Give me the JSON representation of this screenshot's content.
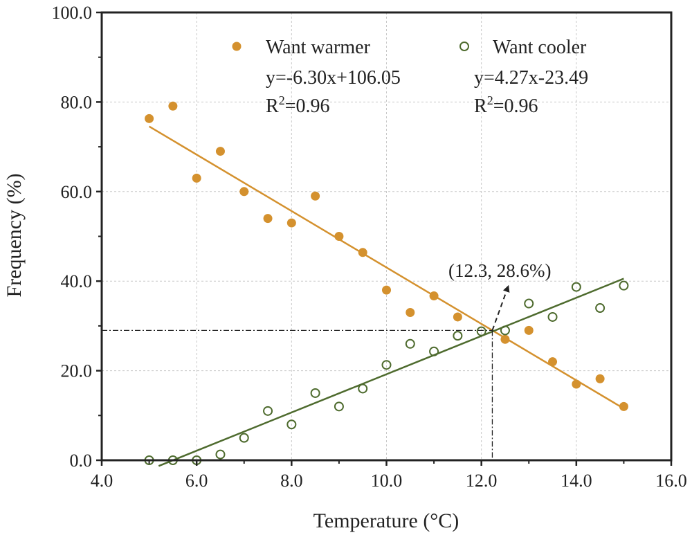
{
  "chart_data": {
    "type": "scatter",
    "xlabel": "Temperature (°C)",
    "ylabel": "Frequency (%)",
    "xlim": [
      4.0,
      16.0
    ],
    "ylim": [
      0.0,
      100.0
    ],
    "xticks": [
      4.0,
      6.0,
      8.0,
      10.0,
      12.0,
      14.0,
      16.0
    ],
    "yticks": [
      0.0,
      20.0,
      40.0,
      60.0,
      80.0,
      100.0
    ],
    "xtick_labels": [
      "4.0",
      "6.0",
      "8.0",
      "10.0",
      "12.0",
      "14.0",
      "16.0"
    ],
    "ytick_labels": [
      "0.0",
      "20.0",
      "40.0",
      "60.0",
      "80.0",
      "100.0"
    ],
    "grid": true,
    "legend_position": "top",
    "series": [
      {
        "name": "Want warmer",
        "marker": "filled-circle",
        "color": "#D4912E",
        "x": [
          5.0,
          5.5,
          6.0,
          6.5,
          7.0,
          7.5,
          8.0,
          8.5,
          9.0,
          9.5,
          10.0,
          10.5,
          11.0,
          11.5,
          12.5,
          13.0,
          13.5,
          14.0,
          14.5,
          15.0
        ],
        "y": [
          76.3,
          79.1,
          63.0,
          69.0,
          60.0,
          54.0,
          53.0,
          59.0,
          50.0,
          46.4,
          38.0,
          33.0,
          36.7,
          32.0,
          27.0,
          29.0,
          22.0,
          17.0,
          18.2,
          12.0
        ],
        "fit": {
          "equation": "y=-6.30x+106.05",
          "r2_prefix": "R",
          "r2_sup": "2",
          "r2_value": "=0.96",
          "slope": -6.3,
          "intercept": 106.05,
          "x_range": [
            5.0,
            15.0
          ]
        }
      },
      {
        "name": "Want cooler",
        "marker": "open-circle",
        "color": "#4E6B2E",
        "x": [
          5.0,
          5.5,
          6.0,
          6.5,
          7.0,
          7.5,
          8.0,
          8.5,
          9.0,
          9.5,
          10.0,
          10.5,
          11.0,
          11.5,
          12.0,
          12.5,
          13.0,
          13.5,
          14.0,
          14.5,
          15.0
        ],
        "y": [
          0.0,
          0.0,
          0.0,
          1.3,
          5.0,
          11.0,
          8.0,
          15.0,
          12.0,
          16.0,
          21.3,
          26.0,
          24.3,
          27.8,
          28.8,
          29.0,
          35.0,
          32.0,
          38.7,
          34.0,
          39.0
        ],
        "fit": {
          "equation": "y=4.27x-23.49",
          "r2_prefix": "R",
          "r2_sup": "2",
          "r2_value": "=0.96",
          "slope": 4.27,
          "intercept": -23.49,
          "x_range": [
            5.2,
            15.0
          ]
        }
      }
    ],
    "annotations": [
      {
        "text": "(12.3, 28.6%)",
        "point": [
          12.23,
          29.0
        ],
        "arrow_to": [
          12.55,
          38.4
        ]
      }
    ]
  },
  "colors": {
    "axis": "#222222",
    "grid": "#c8c8c8",
    "crosshair": "#222222"
  }
}
